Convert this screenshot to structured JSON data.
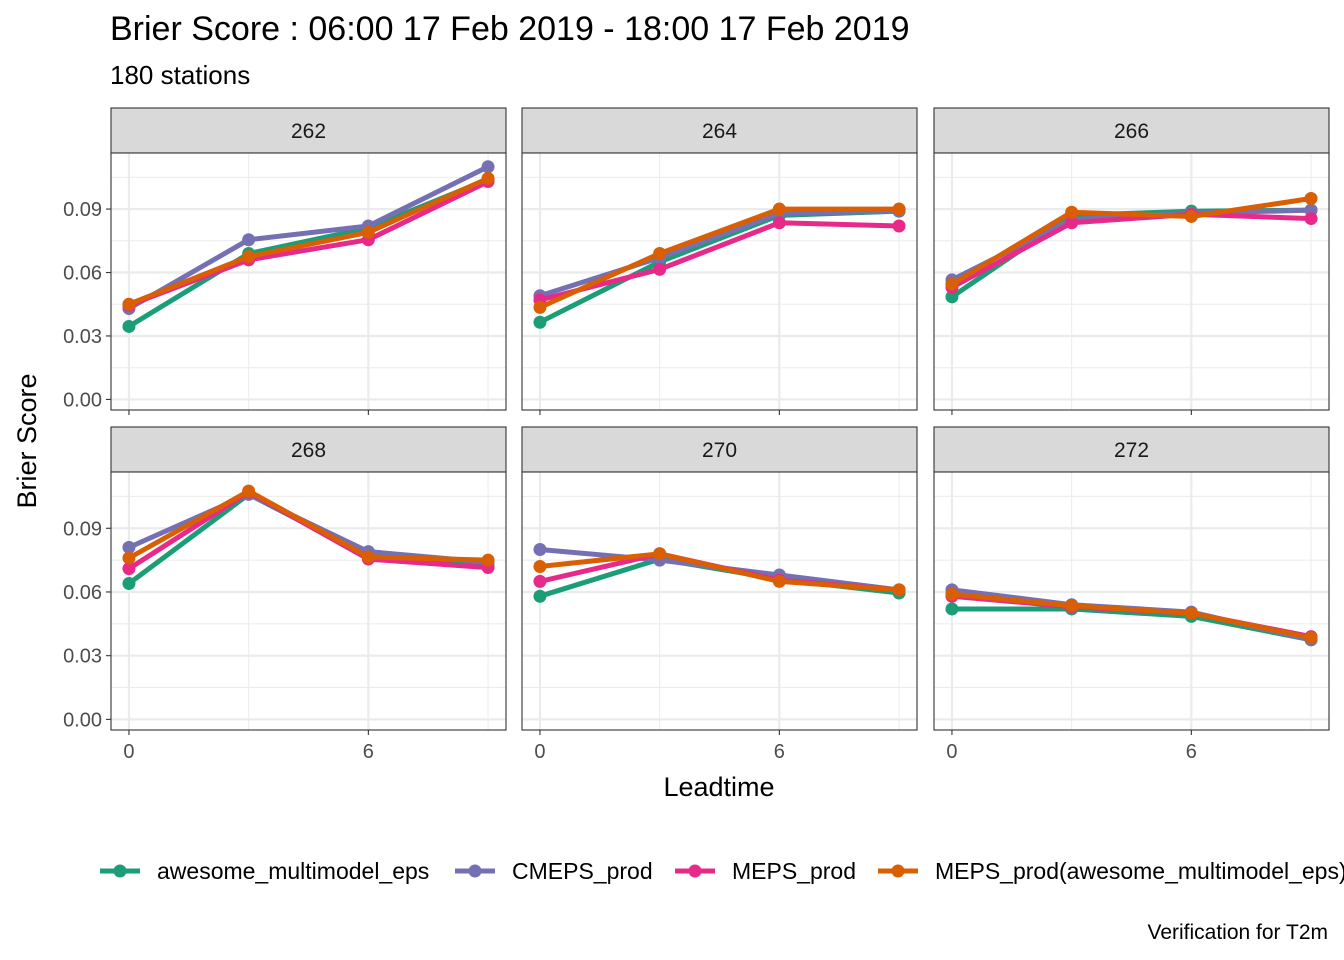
{
  "chart_data": {
    "type": "line",
    "title": "Brier Score : 06:00 17 Feb 2019 - 18:00 17 Feb 2019",
    "subtitle": "180 stations",
    "xlabel": "Leadtime",
    "ylabel": "Brier Score",
    "caption": "Verification for T2m",
    "x": [
      0,
      3,
      6,
      9
    ],
    "x_ticks": [
      0,
      6
    ],
    "y_ticks": [
      0.0,
      0.03,
      0.06,
      0.09
    ],
    "y_tick_labels": [
      "0.00",
      "0.03",
      "0.06",
      "0.09"
    ],
    "x_tick_labels": [
      "0",
      "6"
    ],
    "xlim": [
      -0.45,
      9.45
    ],
    "ylim": [
      -0.005,
      0.1165
    ],
    "grid": true,
    "legend_position": "bottom",
    "series_styles": [
      {
        "name": "awesome_multimodel_eps",
        "color": "#1B9E77"
      },
      {
        "name": "CMEPS_prod",
        "color": "#7570B3"
      },
      {
        "name": "MEPS_prod",
        "color": "#E7298A"
      },
      {
        "name": "MEPS_prod(awesome_multimodel_eps)",
        "color": "#D95F02"
      }
    ],
    "panels": [
      {
        "label": "262",
        "series": [
          {
            "name": "awesome_multimodel_eps",
            "values": [
              0.0345,
              0.069,
              0.081,
              0.104
            ]
          },
          {
            "name": "CMEPS_prod",
            "values": [
              0.043,
              0.0755,
              0.082,
              0.11
            ]
          },
          {
            "name": "MEPS_prod",
            "values": [
              0.0445,
              0.066,
              0.0755,
              0.103
            ]
          },
          {
            "name": "MEPS_prod(awesome_multimodel_eps)",
            "values": [
              0.045,
              0.0675,
              0.079,
              0.1045
            ]
          }
        ]
      },
      {
        "label": "264",
        "series": [
          {
            "name": "awesome_multimodel_eps",
            "values": [
              0.0365,
              0.065,
              0.087,
              0.089
            ]
          },
          {
            "name": "CMEPS_prod",
            "values": [
              0.049,
              0.067,
              0.088,
              0.089
            ]
          },
          {
            "name": "MEPS_prod",
            "values": [
              0.047,
              0.0615,
              0.0835,
              0.082
            ]
          },
          {
            "name": "MEPS_prod(awesome_multimodel_eps)",
            "values": [
              0.0435,
              0.069,
              0.09,
              0.09
            ]
          }
        ]
      },
      {
        "label": "266",
        "series": [
          {
            "name": "awesome_multimodel_eps",
            "values": [
              0.0485,
              0.087,
              0.089,
              0.0895
            ]
          },
          {
            "name": "CMEPS_prod",
            "values": [
              0.0565,
              0.085,
              0.088,
              0.0895
            ]
          },
          {
            "name": "MEPS_prod",
            "values": [
              0.053,
              0.0835,
              0.0875,
              0.0855
            ]
          },
          {
            "name": "MEPS_prod(awesome_multimodel_eps)",
            "values": [
              0.0545,
              0.0885,
              0.0865,
              0.095
            ]
          }
        ]
      },
      {
        "label": "268",
        "series": [
          {
            "name": "awesome_multimodel_eps",
            "values": [
              0.064,
              0.106,
              0.077,
              0.073
            ]
          },
          {
            "name": "CMEPS_prod",
            "values": [
              0.081,
              0.106,
              0.079,
              0.074
            ]
          },
          {
            "name": "MEPS_prod",
            "values": [
              0.071,
              0.107,
              0.0755,
              0.0715
            ]
          },
          {
            "name": "MEPS_prod(awesome_multimodel_eps)",
            "values": [
              0.076,
              0.1075,
              0.0765,
              0.075
            ]
          }
        ]
      },
      {
        "label": "270",
        "series": [
          {
            "name": "awesome_multimodel_eps",
            "values": [
              0.058,
              0.0755,
              0.066,
              0.0595
            ]
          },
          {
            "name": "CMEPS_prod",
            "values": [
              0.08,
              0.075,
              0.068,
              0.061
            ]
          },
          {
            "name": "MEPS_prod",
            "values": [
              0.065,
              0.078,
              0.0655,
              0.061
            ]
          },
          {
            "name": "MEPS_prod(awesome_multimodel_eps)",
            "values": [
              0.072,
              0.078,
              0.065,
              0.061
            ]
          }
        ]
      },
      {
        "label": "272",
        "series": [
          {
            "name": "awesome_multimodel_eps",
            "values": [
              0.052,
              0.052,
              0.0485,
              0.0375
            ]
          },
          {
            "name": "CMEPS_prod",
            "values": [
              0.061,
              0.054,
              0.0505,
              0.0375
            ]
          },
          {
            "name": "MEPS_prod",
            "values": [
              0.058,
              0.053,
              0.05,
              0.039
            ]
          },
          {
            "name": "MEPS_prod(awesome_multimodel_eps)",
            "values": [
              0.059,
              0.0535,
              0.05,
              0.0385
            ]
          }
        ]
      }
    ]
  }
}
